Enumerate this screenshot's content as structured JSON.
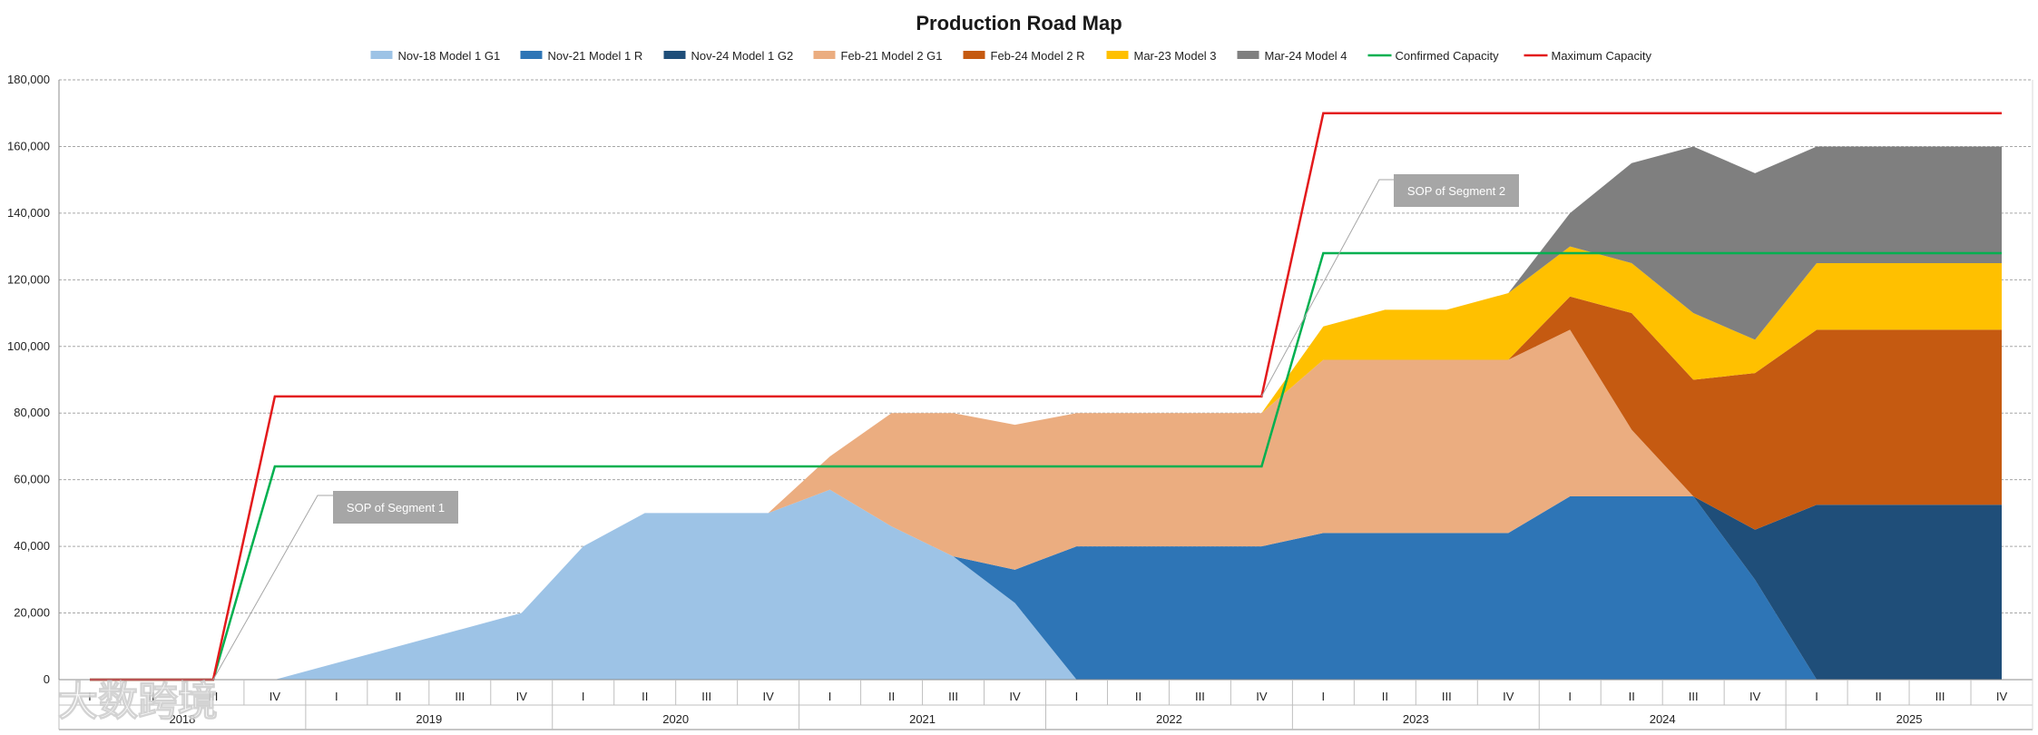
{
  "chart_data": {
    "type": "area",
    "title": "Production Road Map",
    "xlabel": "",
    "ylabel": "",
    "ylim": [
      0,
      180000
    ],
    "y_ticks": [
      0,
      20000,
      40000,
      60000,
      80000,
      100000,
      120000,
      140000,
      160000,
      180000
    ],
    "y_tick_labels": [
      "0",
      "20,000",
      "40,000",
      "60,000",
      "80,000",
      "100,000",
      "120,000",
      "140,000",
      "160,000",
      "180,000"
    ],
    "gridlines": true,
    "legend_position": "top",
    "categories": [
      "I",
      "II",
      "III",
      "IV",
      "I",
      "II",
      "III",
      "IV",
      "I",
      "II",
      "III",
      "IV",
      "I",
      "II",
      "III",
      "IV",
      "I",
      "II",
      "III",
      "IV",
      "I",
      "II",
      "III",
      "IV",
      "I",
      "II",
      "III",
      "IV",
      "I",
      "II",
      "III",
      "IV"
    ],
    "years": [
      "2018",
      "2019",
      "2020",
      "2021",
      "2022",
      "2023",
      "2024",
      "2025"
    ],
    "series": [
      {
        "name": "Nov-18 Model 1 G1",
        "kind": "area",
        "color": "#9dc3e6",
        "values": [
          0,
          0,
          0,
          0,
          5000,
          10000,
          15000,
          20000,
          40000,
          50000,
          50000,
          50000,
          57000,
          46000,
          37000,
          23000,
          0,
          0,
          0,
          0,
          0,
          0,
          0,
          0,
          0,
          0,
          0,
          0,
          0,
          0,
          0,
          0
        ]
      },
      {
        "name": "Nov-21 Model 1 R",
        "kind": "area",
        "color": "#2e75b6",
        "values": [
          0,
          0,
          0,
          0,
          0,
          0,
          0,
          0,
          0,
          0,
          0,
          0,
          0,
          0,
          0,
          10000,
          40000,
          40000,
          40000,
          40000,
          44000,
          44000,
          44000,
          44000,
          55000,
          55000,
          55000,
          30000,
          0,
          0,
          0,
          0
        ]
      },
      {
        "name": "Nov-24 Model 1 G2",
        "kind": "area",
        "color": "#1f4e79",
        "values": [
          0,
          0,
          0,
          0,
          0,
          0,
          0,
          0,
          0,
          0,
          0,
          0,
          0,
          0,
          0,
          0,
          0,
          0,
          0,
          0,
          0,
          0,
          0,
          0,
          0,
          0,
          0,
          15000,
          52500,
          52500,
          52500,
          52500
        ]
      },
      {
        "name": "Feb-21 Model 2 G1",
        "kind": "area",
        "color": "#ebad80",
        "values": [
          0,
          0,
          0,
          0,
          0,
          0,
          0,
          0,
          0,
          0,
          0,
          0,
          10000,
          34000,
          43000,
          43500,
          40000,
          40000,
          40000,
          40000,
          52000,
          52000,
          52000,
          52000,
          50000,
          20000,
          0,
          0,
          0,
          0,
          0,
          0
        ]
      },
      {
        "name": "Feb-24 Model 2 R",
        "kind": "area",
        "color": "#c55a11",
        "values": [
          0,
          0,
          0,
          0,
          0,
          0,
          0,
          0,
          0,
          0,
          0,
          0,
          0,
          0,
          0,
          0,
          0,
          0,
          0,
          0,
          0,
          0,
          0,
          0,
          10000,
          35000,
          35000,
          47000,
          52500,
          52500,
          52500,
          52500
        ]
      },
      {
        "name": "Mar-23 Model 3",
        "kind": "area",
        "color": "#ffc000",
        "values": [
          0,
          0,
          0,
          0,
          0,
          0,
          0,
          0,
          0,
          0,
          0,
          0,
          0,
          0,
          0,
          0,
          0,
          0,
          0,
          0,
          10000,
          15000,
          15000,
          20000,
          15000,
          15000,
          20000,
          10000,
          20000,
          20000,
          20000,
          20000
        ]
      },
      {
        "name": "Mar-24 Model 4",
        "kind": "area",
        "color": "#7f7f7f",
        "values": [
          0,
          0,
          0,
          0,
          0,
          0,
          0,
          0,
          0,
          0,
          0,
          0,
          0,
          0,
          0,
          0,
          0,
          0,
          0,
          0,
          0,
          0,
          0,
          0,
          10000,
          30000,
          50000,
          50000,
          35000,
          35000,
          35000,
          35000
        ]
      },
      {
        "name": "Confirmed Capacity",
        "kind": "line",
        "color": "#00b050",
        "values": [
          0,
          0,
          0,
          64000,
          64000,
          64000,
          64000,
          64000,
          64000,
          64000,
          64000,
          64000,
          64000,
          64000,
          64000,
          64000,
          64000,
          64000,
          64000,
          64000,
          128000,
          128000,
          128000,
          128000,
          128000,
          128000,
          128000,
          128000,
          128000,
          128000,
          128000,
          128000
        ]
      },
      {
        "name": "Maximum Capacity",
        "kind": "line",
        "color": "#e31a1c",
        "values": [
          0,
          0,
          0,
          85000,
          85000,
          85000,
          85000,
          85000,
          85000,
          85000,
          85000,
          85000,
          85000,
          85000,
          85000,
          85000,
          85000,
          85000,
          85000,
          85000,
          170000,
          170000,
          170000,
          170000,
          170000,
          170000,
          170000,
          170000,
          170000,
          170000,
          170000,
          170000
        ]
      }
    ],
    "annotations": [
      {
        "text": "SOP of Segment 1",
        "category_index": 2,
        "value": 0
      },
      {
        "text": "SOP of Segment 2",
        "category_index": 19,
        "value": 85000
      }
    ]
  },
  "watermark": {
    "text": "大数跨境"
  }
}
